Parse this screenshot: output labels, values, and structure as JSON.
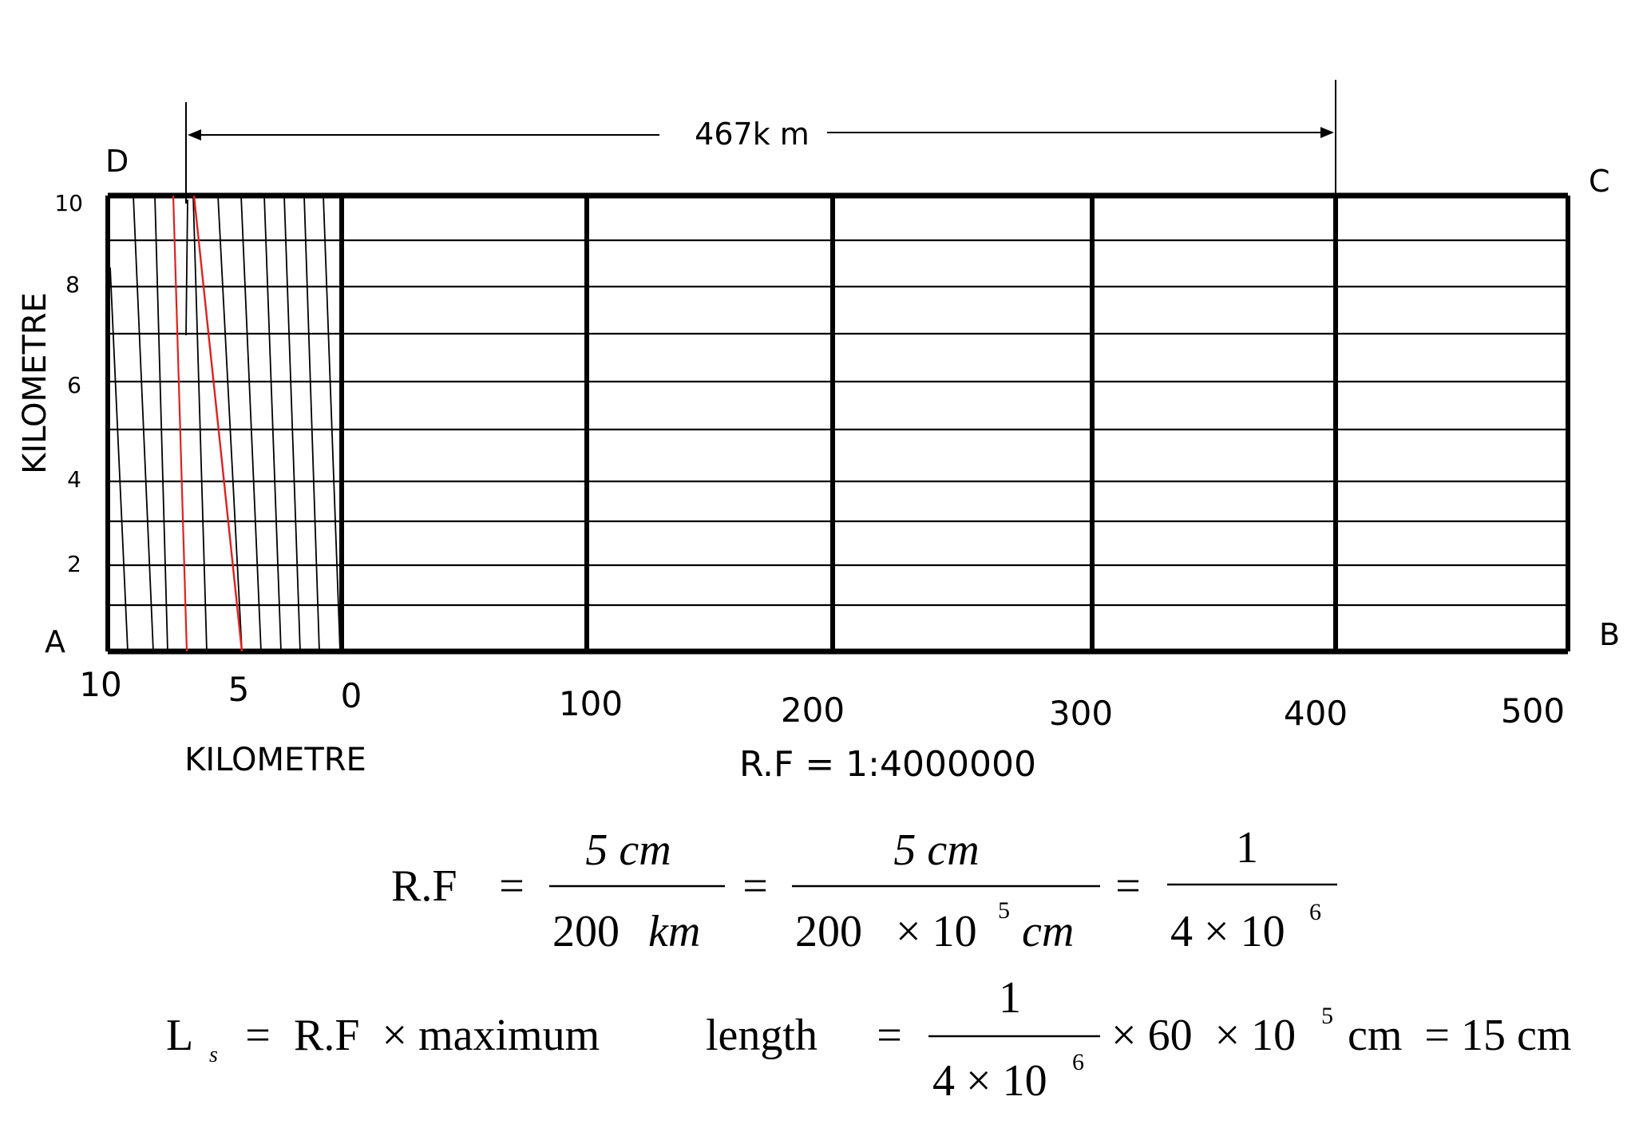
{
  "corners": {
    "a": "A",
    "b": "B",
    "c": "C",
    "d": "D"
  },
  "dimension_label": "467k m",
  "primary_scale": {
    "labels": [
      "0",
      "100",
      "200",
      "300",
      "400",
      "500"
    ]
  },
  "secondary_scale": {
    "labels": [
      "10",
      "5",
      "0"
    ],
    "axis_title": "KILOMETRE"
  },
  "vertical_scale": {
    "labels": [
      "10",
      "8",
      "6",
      "4",
      "2"
    ],
    "axis_title": "KILOMETRE"
  },
  "rf_statement": "R.F = 1:4000000",
  "equation1": {
    "lhs": "R.F",
    "eq": "=",
    "f1_num": "5 cm",
    "f1_den_a": "200",
    "f1_den_b": "km",
    "f2_num": "5 cm",
    "f2_den_a": "200",
    "f2_den_times": "× 10",
    "f2_den_exp": "5",
    "f2_den_unit": "cm",
    "f3_num": "1",
    "f3_den": "4 × 10",
    "f3_den_exp": "6"
  },
  "equation2": {
    "lhs": "L",
    "lhs_sub": "s",
    "eq": "=",
    "mid": "R.F  × maximum",
    "mid2": "length",
    "frac_num": "1",
    "frac_den": "4 × 10",
    "frac_den_exp": "6",
    "tail_a": "× 60  × 10",
    "tail_exp": "5",
    "tail_b": "cm  = 15 cm"
  },
  "colors": {
    "diagonal_highlight": "#e0201f",
    "lines": "#000000"
  }
}
